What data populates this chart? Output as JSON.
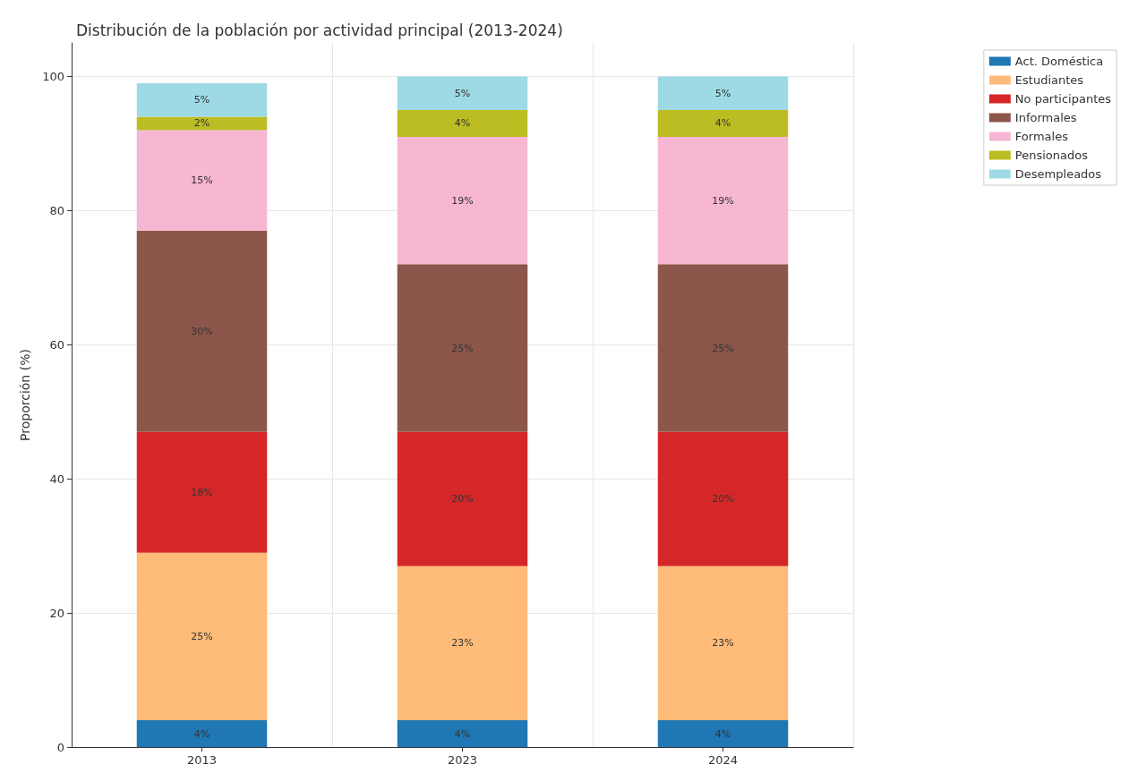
{
  "chart_data": {
    "type": "bar",
    "title": "Distribución de la población por actividad principal (2013-2024)",
    "ylabel": "Proporción (%)",
    "categories": [
      "2013",
      "2023",
      "2024"
    ],
    "stacked": true,
    "ylim": [
      0,
      105
    ],
    "yticks": [
      0,
      20,
      40,
      60,
      80,
      100
    ],
    "grid": true,
    "legend": "top right",
    "series": [
      {
        "name": "Act. Doméstica",
        "color": "#1f77b4",
        "values": [
          4,
          4,
          4
        ],
        "value_labels": [
          "4%",
          "4%",
          "4%"
        ]
      },
      {
        "name": "Estudiantes",
        "color": "#ffbb78",
        "values": [
          25,
          23,
          23
        ],
        "value_labels": [
          "25%",
          "23%",
          "23%"
        ]
      },
      {
        "name": "No participantes",
        "color": "#d62728",
        "values": [
          18,
          20,
          20
        ],
        "value_labels": [
          "18%",
          "20%",
          "20%"
        ]
      },
      {
        "name": "Informales",
        "color": "#8c564b",
        "values": [
          30,
          25,
          25
        ],
        "value_labels": [
          "30%",
          "25%",
          "25%"
        ]
      },
      {
        "name": "Formales",
        "color": "#f7b6d2",
        "values": [
          15,
          19,
          19
        ],
        "value_labels": [
          "15%",
          "19%",
          "19%"
        ]
      },
      {
        "name": "Pensionados",
        "color": "#bcbd22",
        "values": [
          2,
          4,
          4
        ],
        "value_labels": [
          "2%",
          "4%",
          "4%"
        ]
      },
      {
        "name": "Desempleados",
        "color": "#9edae5",
        "values": [
          5,
          5,
          5
        ],
        "value_labels": [
          "5%",
          "5%",
          "5%"
        ]
      }
    ]
  }
}
